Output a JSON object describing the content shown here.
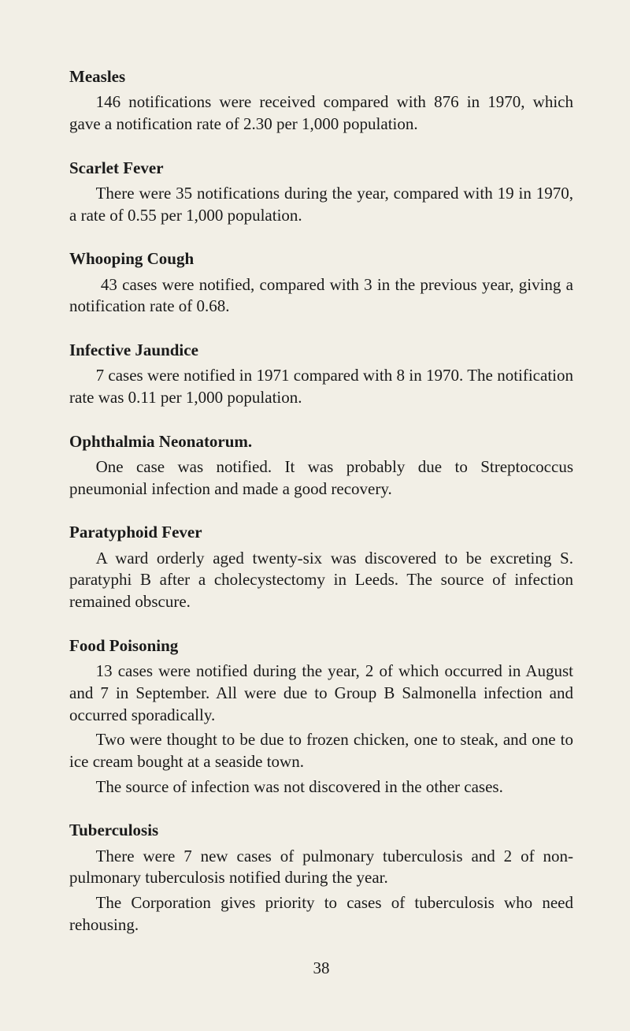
{
  "page": {
    "background_color": "#f2efe6",
    "text_color": "#1a1a1a",
    "font_family": "Times New Roman",
    "heading_fontsize_pt": 16,
    "body_fontsize_pt": 16,
    "page_number": "38"
  },
  "sections": {
    "measles": {
      "heading": "Measles",
      "paras": [
        "146 notifications were received compared with 876 in 1970, which gave a notification rate of 2.30 per 1,000 population."
      ]
    },
    "scarlet_fever": {
      "heading": "Scarlet Fever",
      "paras": [
        "There were 35 notifications during the year, compared with 19 in 1970, a rate of 0.55 per 1,000 population."
      ]
    },
    "whooping_cough": {
      "heading": "Whooping Cough",
      "paras": [
        "43 cases were notified, compared with 3 in the previous year, giving a notification rate of 0.68."
      ]
    },
    "infective_jaundice": {
      "heading": "Infective Jaundice",
      "paras": [
        "7 cases were notified in 1971 compared with 8 in 1970. The notification rate was 0.11 per 1,000 population."
      ]
    },
    "ophthalmia": {
      "heading": "Ophthalmia Neonatorum.",
      "paras": [
        "One case was notified. It was probably due to Streptococcus pneumonial infection and made a good recovery."
      ]
    },
    "paratyphoid": {
      "heading": "Paratyphoid Fever",
      "paras": [
        "A ward orderly aged twenty-six was discovered to be excreting S. paratyphi B after a cholecystectomy in Leeds. The source of infection remained obscure."
      ]
    },
    "food_poisoning": {
      "heading": "Food Poisoning",
      "paras": [
        "13 cases were notified during the year, 2 of which occurred in August and 7 in September. All were due to Group B Salmonella infection and occurred sporadically.",
        "Two were thought to be due to frozen chicken, one to steak, and one to ice cream bought at a seaside town.",
        "The source of infection was not discovered in the other cases."
      ]
    },
    "tuberculosis": {
      "heading": "Tuberculosis",
      "paras": [
        "There were 7 new cases of pulmonary tuberculosis and 2 of non-pulmonary tuberculosis notified during the year.",
        "The Corporation gives priority to cases of tuberculosis who need rehousing."
      ]
    }
  }
}
